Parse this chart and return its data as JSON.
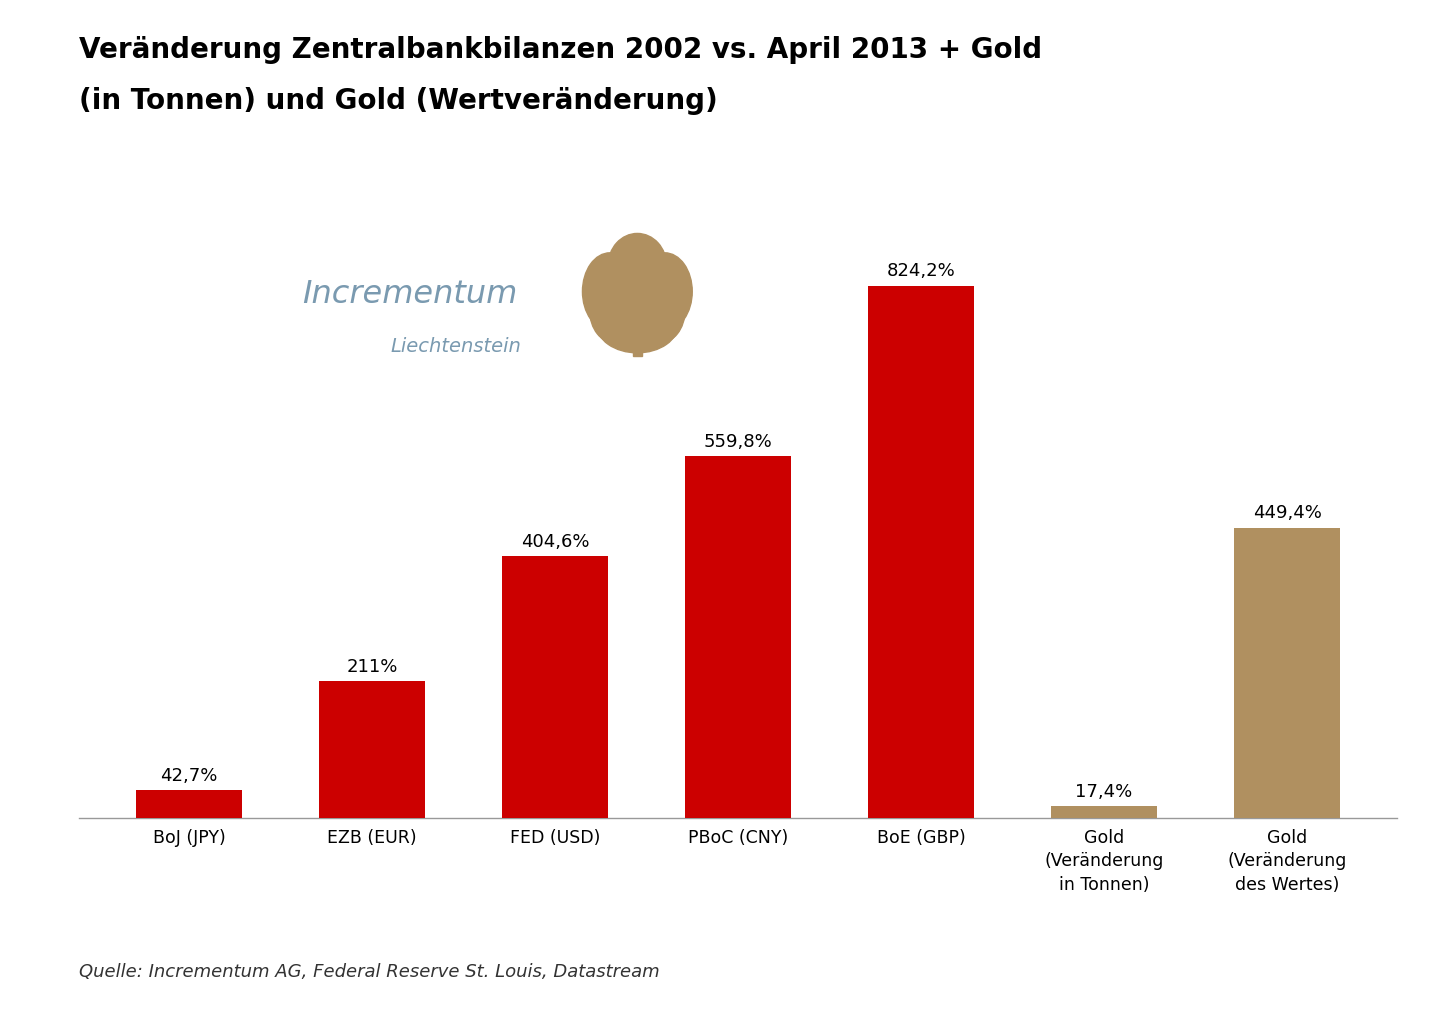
{
  "title_line1": "Veränderung Zentralbankbilanzen 2002 vs. April 2013 + Gold",
  "title_line2": "(in Tonnen) und Gold (Wertveränderung)",
  "categories": [
    "BoJ (JPY)",
    "EZB (EUR)",
    "FED (USD)",
    "PBoC (CNY)",
    "BoE (GBP)",
    "Gold\n(Veränderung\nin Tonnen)",
    "Gold\n(Veränderung\ndes Wertes)"
  ],
  "values": [
    42.7,
    211.0,
    404.6,
    559.8,
    824.2,
    17.4,
    449.4
  ],
  "labels": [
    "42,7%",
    "211%",
    "404,6%",
    "559,8%",
    "824,2%",
    "17,4%",
    "449,4%"
  ],
  "bar_colors": [
    "#cc0000",
    "#cc0000",
    "#cc0000",
    "#cc0000",
    "#cc0000",
    "#b09060",
    "#b09060"
  ],
  "background_color": "#ffffff",
  "source_text": "Quelle: Incrementum AG, Federal Reserve St. Louis, Datastream",
  "incrementum_text": "Incrementum",
  "liechtenstein_text": "Liechtenstein",
  "incrementum_color": "#7a9ab0",
  "label_fontsize": 13,
  "title_fontsize": 20,
  "source_fontsize": 13,
  "ylim": [
    0,
    950
  ]
}
